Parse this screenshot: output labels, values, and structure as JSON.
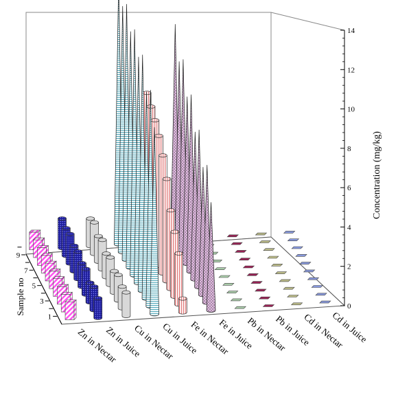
{
  "chart_data": {
    "type": "bar3d",
    "zlabel": "Concentration (mg/kg)",
    "ylabel": "Sample no",
    "zlim": [
      0,
      14
    ],
    "z_ticks": [
      0,
      2,
      4,
      6,
      8,
      10,
      12,
      14
    ],
    "y_ticks": [
      1,
      3,
      5,
      7,
      9
    ],
    "samples": [
      1,
      2,
      3,
      4,
      5,
      6,
      7,
      8,
      9,
      10
    ],
    "series": [
      {
        "name": "Zn in Nectar",
        "shape": "box",
        "color": "#ff66ff",
        "values": [
          0.9,
          0.9,
          0.9,
          0.9,
          0.9,
          0.9,
          0.9,
          0.9,
          0.9,
          0.9
        ]
      },
      {
        "name": "Zn in Juice",
        "shape": "cylinder",
        "color": "#2222aa",
        "values": [
          1.0,
          1.2,
          1.0,
          1.3,
          1.2,
          1.4,
          1.3,
          1.5,
          1.4,
          1.5
        ]
      },
      {
        "name": "Cu in Nectar",
        "shape": "cylinder",
        "color": "#d8d8d8",
        "values": [
          1.2,
          1.1,
          1.3,
          1.1,
          1.4,
          1.2,
          1.5,
          1.3,
          1.6,
          1.4
        ]
      },
      {
        "name": "Cu in Juice",
        "shape": "cone",
        "color": "#88ccdd",
        "values": [
          9.5,
          11.0,
          10.5,
          12.0,
          11.5,
          12.5,
          12.0,
          13.0,
          12.5,
          13.5
        ]
      },
      {
        "name": "Fe in Nectar",
        "shape": "cylinder",
        "color": "#f0a8a8",
        "values": [
          0.7,
          2.6,
          3.3,
          4.0,
          5.2,
          6.0,
          6.6,
          7.0,
          7.3,
          7.6
        ]
      },
      {
        "name": "Fe in Juice",
        "shape": "cone",
        "color": "#d8a8d8",
        "values": [
          5.5,
          7.0,
          6.5,
          8.0,
          7.5,
          9.0,
          8.5,
          10.0,
          9.5,
          11.0
        ]
      },
      {
        "name": "Pb in Nectar",
        "shape": "box",
        "color": "#aaccaa",
        "values": [
          0.1,
          0.1,
          0.1,
          0.1,
          0.1,
          0.1,
          0.1,
          0.1,
          0.1,
          0.1
        ]
      },
      {
        "name": "Pb in Juice",
        "shape": "box",
        "color": "#992255",
        "values": [
          0.1,
          0.1,
          0.1,
          0.1,
          0.1,
          0.1,
          0.1,
          0.1,
          0.1,
          0.1
        ]
      },
      {
        "name": "Cd in Nectar",
        "shape": "box",
        "color": "#bbbb88",
        "values": [
          0.05,
          0.05,
          0.05,
          0.05,
          0.05,
          0.05,
          0.05,
          0.05,
          0.05,
          0.05
        ]
      },
      {
        "name": "Cd in Juice",
        "shape": "box",
        "color": "#8899dd",
        "values": [
          0.05,
          0.05,
          0.05,
          0.05,
          0.05,
          0.05,
          0.05,
          0.05,
          0.05,
          0.05
        ]
      }
    ]
  }
}
